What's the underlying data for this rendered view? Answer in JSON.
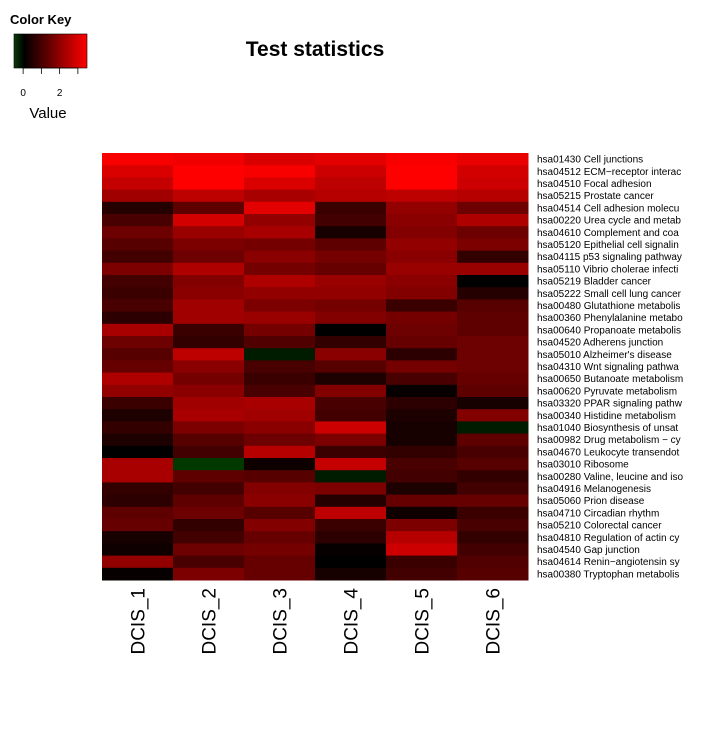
{
  "chart_data": {
    "type": "heatmap",
    "title": "Test statistics",
    "color_key": {
      "title": "Color Key",
      "xlabel": "Value",
      "tick_labels": [
        "0",
        "2"
      ],
      "ticks": [
        0,
        1,
        2,
        3
      ],
      "colors": [
        "#0b3d0b",
        "#000000",
        "#ff0000"
      ],
      "range": [
        -0.5,
        3.5
      ]
    },
    "columns": [
      "DCIS_1",
      "DCIS_2",
      "DCIS_3",
      "DCIS_4",
      "DCIS_5",
      "DCIS_6"
    ],
    "rows": [
      "hsa01430 Cell junctions",
      "hsa04512 ECM−receptor interac",
      "hsa04510 Focal adhesion",
      "hsa05215 Prostate cancer",
      "hsa04514 Cell adhesion molecu",
      "hsa00220 Urea cycle and metab",
      "hsa04610 Complement and coa",
      "hsa05120 Epithelial cell signalin",
      "hsa04115 p53 signaling pathway",
      "hsa05110 Vibrio cholerae infecti",
      "hsa05219 Bladder cancer",
      "hsa05222 Small cell lung cancer",
      "hsa00480 Glutathione metabolis",
      "hsa00360 Phenylalanine metabo",
      "hsa00640 Propanoate metabolis",
      "hsa04520 Adherens junction",
      "hsa05010 Alzheimer's disease",
      "hsa04310 Wnt signaling pathwa",
      "hsa00650 Butanoate metabolism",
      "hsa00620 Pyruvate metabolism",
      "hsa03320 PPAR signaling pathw",
      "hsa00340 Histidine metabolism",
      "hsa01040 Biosynthesis of unsat",
      "hsa00982 Drug metabolism − cy",
      "hsa04670 Leukocyte transendot",
      "hsa03010 Ribosome",
      "hsa00280 Valine, leucine and iso",
      "hsa04916 Melanogenesis",
      "hsa05060 Prion disease",
      "hsa04710 Circadian rhythm",
      "hsa05210 Colorectal cancer",
      "hsa04810 Regulation of actin cy",
      "hsa04540 Gap junction",
      "hsa04614 Renin−angiotensin sy",
      "hsa00380 Tryptophan metabolis"
    ],
    "values": [
      [
        3.4,
        3.3,
        3.0,
        3.1,
        3.4,
        3.2
      ],
      [
        3.0,
        3.5,
        3.4,
        2.8,
        3.5,
        2.9
      ],
      [
        2.7,
        3.5,
        3.0,
        2.6,
        3.5,
        2.8
      ],
      [
        2.2,
        2.6,
        2.3,
        2.5,
        2.6,
        2.5
      ],
      [
        0.5,
        1.3,
        3.1,
        0.8,
        2.0,
        1.5
      ],
      [
        1.0,
        2.9,
        2.0,
        0.9,
        1.9,
        2.4
      ],
      [
        1.5,
        2.1,
        2.3,
        0.3,
        1.8,
        1.5
      ],
      [
        1.2,
        1.7,
        1.6,
        1.3,
        2.0,
        1.7
      ],
      [
        0.9,
        1.5,
        1.9,
        1.6,
        1.9,
        0.7
      ],
      [
        1.7,
        2.4,
        1.6,
        1.4,
        2.1,
        2.1
      ],
      [
        0.9,
        1.8,
        2.4,
        2.1,
        1.9,
        0.0
      ],
      [
        0.8,
        1.9,
        2.0,
        2.0,
        1.8,
        0.5
      ],
      [
        1.0,
        2.2,
        1.7,
        1.6,
        0.8,
        1.2
      ],
      [
        0.6,
        2.2,
        2.1,
        1.8,
        1.6,
        1.3
      ],
      [
        2.3,
        0.8,
        1.6,
        0.0,
        1.5,
        1.3
      ],
      [
        1.5,
        0.7,
        1.1,
        0.7,
        1.4,
        1.5
      ],
      [
        1.2,
        2.6,
        -0.2,
        1.9,
        0.6,
        1.5
      ],
      [
        1.4,
        1.9,
        1.0,
        1.2,
        1.6,
        1.5
      ],
      [
        2.4,
        1.6,
        0.8,
        0.4,
        1.0,
        1.4
      ],
      [
        2.0,
        1.9,
        1.0,
        1.8,
        0.1,
        1.3
      ],
      [
        0.8,
        2.2,
        2.3,
        1.0,
        0.6,
        0.3
      ],
      [
        0.4,
        2.3,
        2.2,
        0.9,
        0.4,
        1.8
      ],
      [
        0.7,
        1.7,
        1.9,
        2.8,
        0.3,
        -0.2
      ],
      [
        0.4,
        1.2,
        1.5,
        1.7,
        0.3,
        1.3
      ],
      [
        0.0,
        0.9,
        2.5,
        0.8,
        0.7,
        1.0
      ],
      [
        2.3,
        -0.4,
        0.2,
        2.7,
        1.0,
        1.2
      ],
      [
        2.3,
        1.3,
        1.2,
        -0.2,
        0.9,
        0.7
      ],
      [
        0.7,
        0.9,
        1.8,
        1.7,
        0.4,
        0.9
      ],
      [
        0.6,
        1.3,
        1.9,
        0.5,
        1.4,
        1.4
      ],
      [
        1.3,
        1.5,
        1.2,
        2.6,
        0.2,
        0.8
      ],
      [
        1.4,
        0.7,
        1.8,
        0.8,
        1.7,
        1.0
      ],
      [
        0.3,
        0.9,
        1.4,
        0.6,
        2.5,
        0.7
      ],
      [
        0.2,
        1.5,
        1.6,
        0.1,
        2.8,
        0.9
      ],
      [
        2.0,
        1.0,
        1.4,
        0.0,
        0.8,
        1.1
      ],
      [
        0.1,
        1.7,
        1.4,
        0.3,
        0.9,
        1.2
      ]
    ]
  }
}
